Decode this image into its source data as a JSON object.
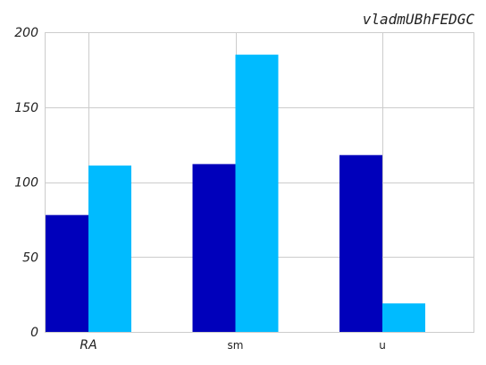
{
  "chart_data": {
    "type": "bar",
    "title": "vladmUBhFEDGC",
    "categories": [
      "RA",
      "sm",
      "u"
    ],
    "series": [
      {
        "values": [
          78,
          112,
          118
        ],
        "color": "#0000bb"
      },
      {
        "values": [
          111,
          185,
          19
        ],
        "color": "#00bbff"
      }
    ],
    "xlabel": "",
    "ylabel": "",
    "ylim": [
      0,
      200
    ],
    "yticks": [
      0,
      50,
      100,
      150,
      200
    ],
    "grid": true,
    "legend": "none"
  }
}
